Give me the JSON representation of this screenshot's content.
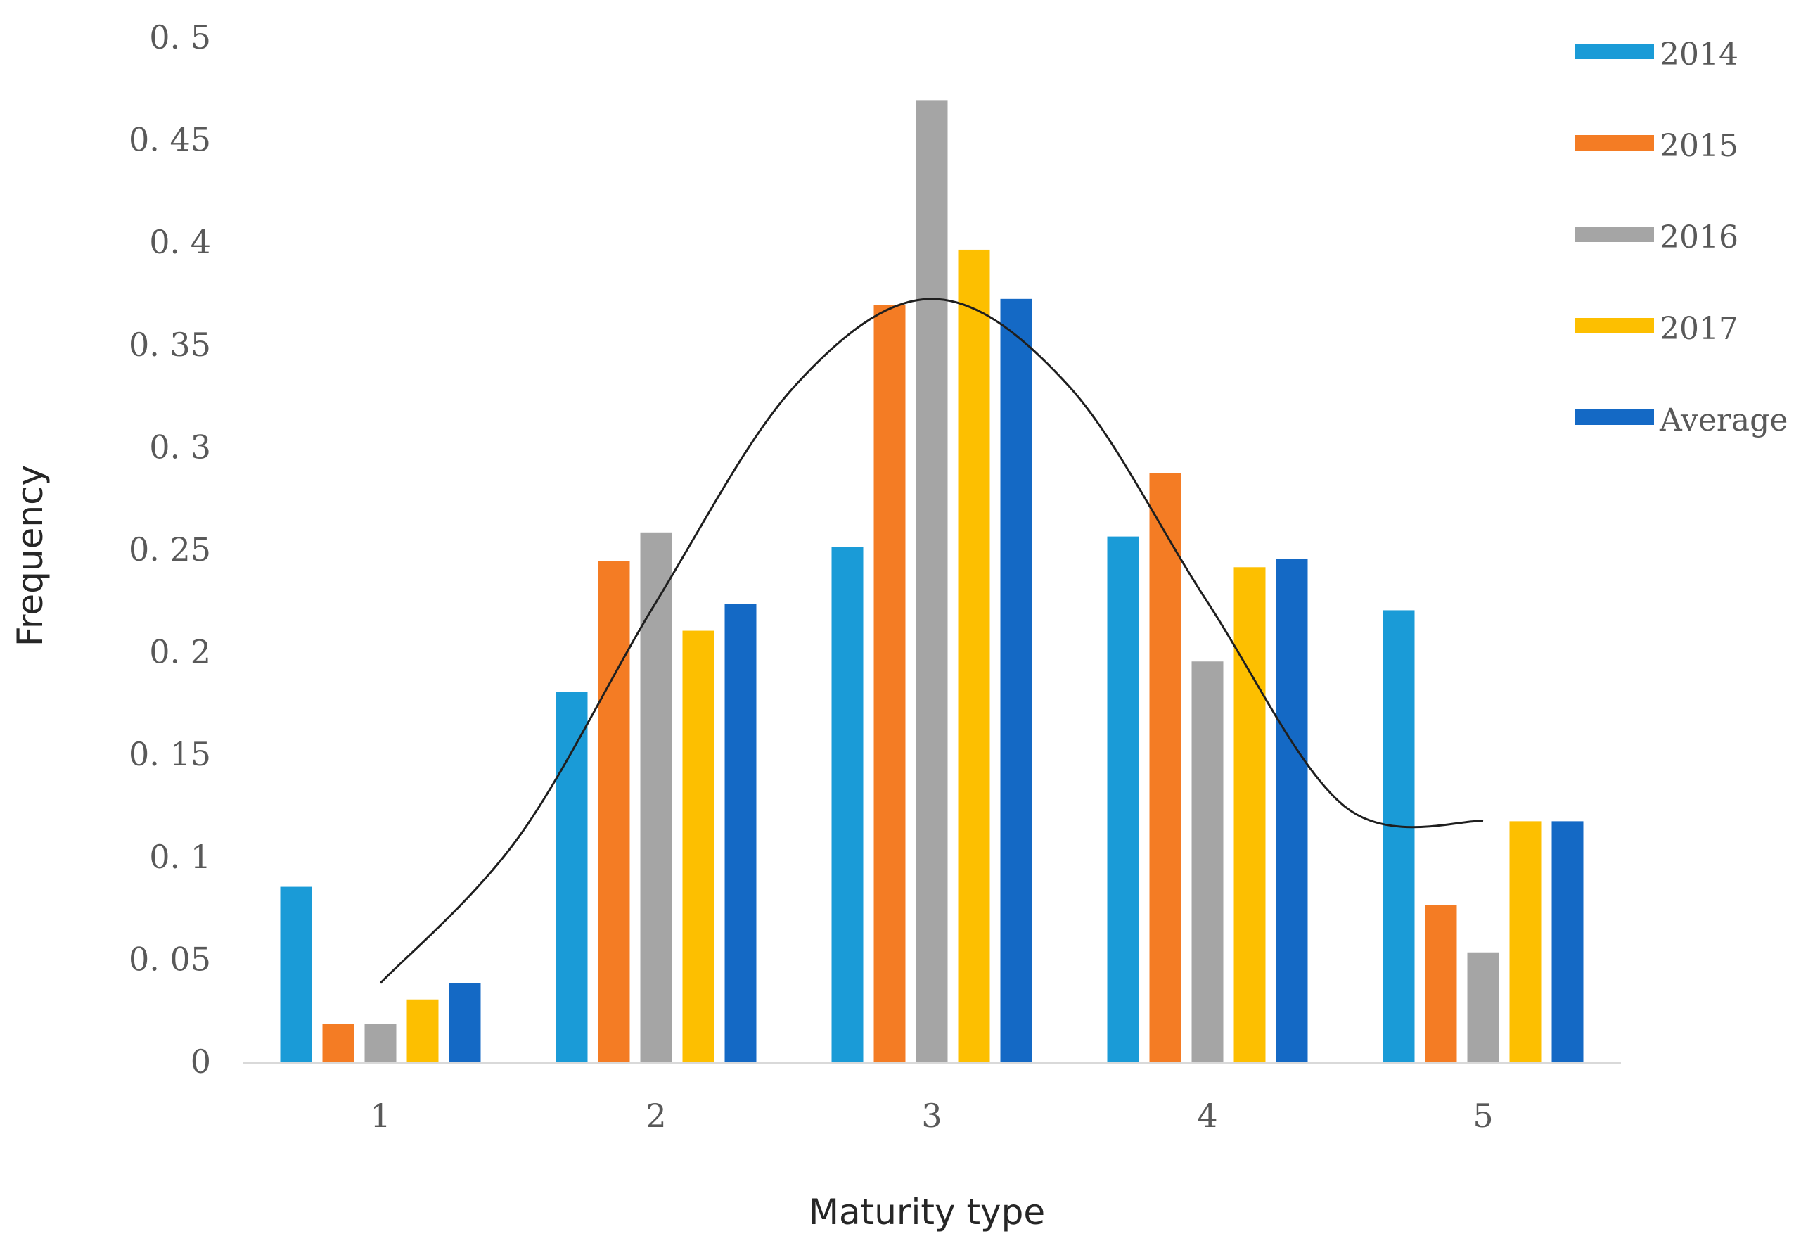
{
  "chart_data": {
    "type": "bar",
    "title": "",
    "xlabel": "Maturity type",
    "ylabel": "Frequency",
    "categories": [
      "1",
      "2",
      "3",
      "4",
      "5"
    ],
    "ylim": [
      0,
      0.5
    ],
    "yticks": [
      "0",
      "0. 05",
      "0. 1",
      "0. 15",
      "0. 2",
      "0. 25",
      "0. 3",
      "0. 35",
      "0. 4",
      "0. 45",
      "0. 5"
    ],
    "ytick_values": [
      0,
      0.05,
      0.1,
      0.15,
      0.2,
      0.25,
      0.3,
      0.35,
      0.4,
      0.45,
      0.5
    ],
    "grid": false,
    "legend_position": "right",
    "series": [
      {
        "name": "2014",
        "color": "#1a9bd7",
        "values": [
          0.086,
          0.181,
          0.252,
          0.257,
          0.221
        ]
      },
      {
        "name": "2015",
        "color": "#f47c24",
        "values": [
          0.019,
          0.245,
          0.37,
          0.288,
          0.077
        ]
      },
      {
        "name": "2016",
        "color": "#a5a5a5",
        "values": [
          0.019,
          0.259,
          0.47,
          0.196,
          0.054
        ]
      },
      {
        "name": "2017",
        "color": "#fdbf00",
        "values": [
          0.031,
          0.211,
          0.397,
          0.242,
          0.118
        ]
      },
      {
        "name": "Average",
        "color": "#1469c5",
        "values": [
          0.039,
          0.224,
          0.373,
          0.246,
          0.118
        ]
      }
    ],
    "trend_curve": {
      "color": "#1f1f1f",
      "x": [
        1,
        1.5,
        2,
        2.5,
        3,
        3.5,
        4,
        4.5,
        5
      ],
      "y": [
        0.039,
        0.11,
        0.225,
        0.33,
        0.373,
        0.33,
        0.225,
        0.125,
        0.118
      ]
    }
  }
}
